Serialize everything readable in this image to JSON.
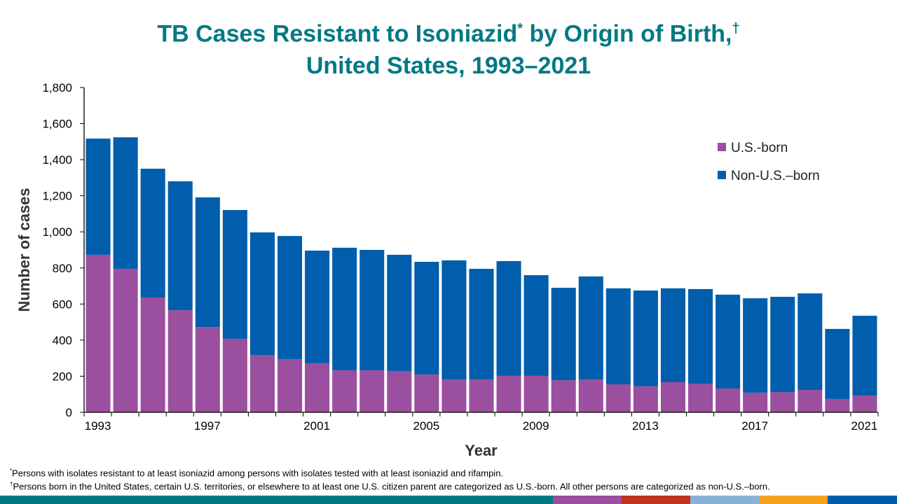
{
  "title_line1": "TB Cases Resistant to Isoniazid",
  "title_mark1": "*",
  "title_line1b": " by Origin of Birth,",
  "title_mark2": "†",
  "title_line2": "United States, 1993–2021",
  "footnotes": [
    {
      "mark": "*",
      "text": "Persons with isolates resistant to at least isoniazid among persons with isolates tested with at least isoniazid and rifampin."
    },
    {
      "mark": "†",
      "text": "Persons born in the United States, certain U.S. territories, or elsewhere to at least one U.S. citizen parent are categorized as U.S.-born. All other persons are categorized as non-U.S.–born."
    }
  ],
  "colors": {
    "title": "#007983",
    "us_born": "#9B4F9F",
    "non_us_born": "#005EAC",
    "strip": [
      "#007983",
      "#9B4F9F",
      "#C0311E",
      "#88B2D8",
      "#F5A31D",
      "#005EAC"
    ]
  },
  "chart_data": {
    "type": "bar",
    "stacked": true,
    "xlabel": "Year",
    "ylabel": "Number of cases",
    "ylim": [
      0,
      1800
    ],
    "yticks": [
      0,
      200,
      400,
      600,
      800,
      1000,
      1200,
      1400,
      1600,
      1800
    ],
    "ytick_labels": [
      "0",
      "200",
      "400",
      "600",
      "800",
      "1,000",
      "1,200",
      "1,400",
      "1,600",
      "1,800"
    ],
    "xtick_labels": [
      "1993",
      "1997",
      "2001",
      "2005",
      "2009",
      "2013",
      "2017",
      "2021"
    ],
    "legend_position": "top-right",
    "categories": [
      1993,
      1994,
      1995,
      1996,
      1997,
      1998,
      1999,
      2000,
      2001,
      2002,
      2003,
      2004,
      2005,
      2006,
      2007,
      2008,
      2009,
      2010,
      2011,
      2012,
      2013,
      2014,
      2015,
      2016,
      2017,
      2018,
      2019,
      2020,
      2021
    ],
    "series": [
      {
        "name": "U.S.-born",
        "values": [
          873,
          795,
          636,
          566,
          473,
          407,
          318,
          295,
          272,
          233,
          233,
          229,
          209,
          182,
          182,
          202,
          202,
          178,
          182,
          155,
          144,
          167,
          159,
          132,
          109,
          112,
          124,
          74,
          93
        ]
      },
      {
        "name": "Non-U.S.–born",
        "values": [
          644,
          729,
          714,
          714,
          718,
          714,
          679,
          682,
          624,
          679,
          667,
          644,
          625,
          660,
          613,
          636,
          558,
          512,
          571,
          532,
          531,
          520,
          524,
          520,
          523,
          528,
          535,
          388,
          442
        ]
      }
    ]
  }
}
